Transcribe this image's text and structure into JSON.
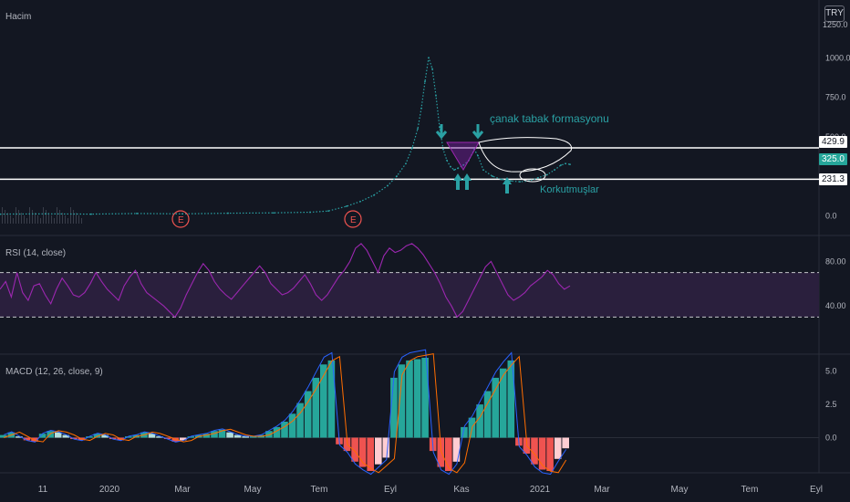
{
  "currency_badge": "TRY",
  "volume_label": "Hacim",
  "price_axis_top_label": "1250.0",
  "annotations": {
    "pattern": "çanak tabak formasyonu",
    "shakeout": "Korkutmuşlar",
    "earnings_marker": "E"
  },
  "price_tags": {
    "resistance": "429.9",
    "current": "325.0",
    "support": "231.3"
  },
  "colors": {
    "background": "#131722",
    "price_line": "#2aa1a4",
    "rsi_line": "#9c27b0",
    "rsi_band": "#2a1f3d",
    "macd_line": "#2962ff",
    "signal_line": "#ff6d00",
    "hist_pos": "#26a69a",
    "hist_pos_light": "#b2dfdb",
    "hist_neg": "#ef5350",
    "hist_neg_light": "#ffcdd2",
    "annotation": "#2aa1a4",
    "current_tag": "#26a69a"
  },
  "chart_data": [
    {
      "type": "line",
      "title": "",
      "y_ticks": [
        "1000.0",
        "750.0",
        "500.0",
        "0.0"
      ],
      "y_range": [
        -50,
        1250
      ],
      "horizontal_levels": [
        429.9,
        231.3
      ],
      "current_price": 325.0,
      "x_ticks": [
        "11",
        "2020",
        "Mar",
        "May",
        "Tem",
        "Eyl",
        "Kas",
        "2021",
        "Mar",
        "May",
        "Tem",
        "Eyl"
      ],
      "series": [
        {
          "name": "",
          "points": [
            [
              0,
              10
            ],
            [
              50,
              12
            ],
            [
              100,
              10
            ],
            [
              150,
              14
            ],
            [
              200,
              12
            ],
            [
              250,
              16
            ],
            [
              300,
              18
            ],
            [
              340,
              22
            ],
            [
              360,
              30
            ],
            [
              380,
              60
            ],
            [
              395,
              90
            ],
            [
              410,
              130
            ],
            [
              425,
              190
            ],
            [
              435,
              250
            ],
            [
              445,
              330
            ],
            [
              452,
              430
            ],
            [
              458,
              550
            ],
            [
              462,
              680
            ],
            [
              466,
              850
            ],
            [
              470,
              1000
            ],
            [
              474,
              930
            ],
            [
              478,
              760
            ],
            [
              482,
              560
            ],
            [
              486,
              420
            ],
            [
              490,
              350
            ],
            [
              494,
              310
            ],
            [
              498,
              290
            ],
            [
              502,
              300
            ],
            [
              508,
              320
            ],
            [
              514,
              350
            ],
            [
              520,
              420
            ],
            [
              524,
              380
            ],
            [
              530,
              290
            ],
            [
              540,
              250
            ],
            [
              550,
              230
            ],
            [
              560,
              220
            ],
            [
              570,
              215
            ],
            [
              580,
              220
            ],
            [
              590,
              240
            ],
            [
              600,
              260
            ],
            [
              608,
              290
            ],
            [
              615,
              320
            ],
            [
              620,
              330
            ],
            [
              625,
              325
            ]
          ]
        }
      ]
    },
    {
      "type": "line",
      "title": "RSI (14, close)",
      "y_ticks": [
        "80.00",
        "40.00"
      ],
      "y_range": [
        0,
        100
      ],
      "bands": [
        30,
        70
      ],
      "series": [
        {
          "name": "",
          "values": [
            55,
            62,
            48,
            70,
            52,
            45,
            58,
            60,
            50,
            42,
            55,
            65,
            58,
            50,
            48,
            52,
            60,
            70,
            62,
            55,
            50,
            45,
            58,
            66,
            72,
            60,
            52,
            48,
            44,
            40,
            35,
            30,
            38,
            50,
            60,
            70,
            78,
            72,
            62,
            55,
            50,
            46,
            52,
            58,
            64,
            70,
            76,
            70,
            60,
            55,
            50,
            52,
            56,
            62,
            68,
            60,
            50,
            45,
            50,
            58,
            66,
            72,
            80,
            92,
            96,
            90,
            80,
            70,
            85,
            92,
            88,
            90,
            94,
            96,
            92,
            86,
            78,
            70,
            60,
            48,
            40,
            30,
            35,
            45,
            55,
            65,
            75,
            80,
            70,
            60,
            50,
            45,
            48,
            52,
            58,
            62,
            66,
            72,
            68,
            60,
            55,
            58
          ]
        }
      ]
    },
    {
      "type": "bar",
      "title": "MACD (12, 26, close, 9)",
      "y_ticks": [
        "5.0",
        "2.5",
        "0.0"
      ],
      "y_range": [
        -2.5,
        6
      ],
      "histogram": [
        0.2,
        0.4,
        0.1,
        -0.2,
        -0.3,
        0.3,
        0.5,
        0.4,
        0.2,
        -0.1,
        -0.2,
        0.1,
        0.3,
        0.2,
        -0.1,
        -0.2,
        0.1,
        0.2,
        0.4,
        0.3,
        0.1,
        -0.1,
        -0.3,
        -0.2,
        0.1,
        0.2,
        0.3,
        0.5,
        0.6,
        0.4,
        0.2,
        0.1,
        0.1,
        0.2,
        0.5,
        0.8,
        1.2,
        1.8,
        2.6,
        3.5,
        4.5,
        5.5,
        5.8,
        -0.5,
        -1.0,
        -1.8,
        -2.2,
        -2.5,
        -2.0,
        -1.5,
        4.5,
        5.5,
        5.8,
        5.9,
        6.0,
        -1.0,
        -2.2,
        -2.5,
        -1.8,
        0.8,
        1.5,
        2.5,
        3.5,
        4.5,
        5.2,
        5.8,
        -0.6,
        -1.2,
        -2.0,
        -2.4,
        -2.5,
        -1.6,
        -0.8
      ]
    }
  ]
}
